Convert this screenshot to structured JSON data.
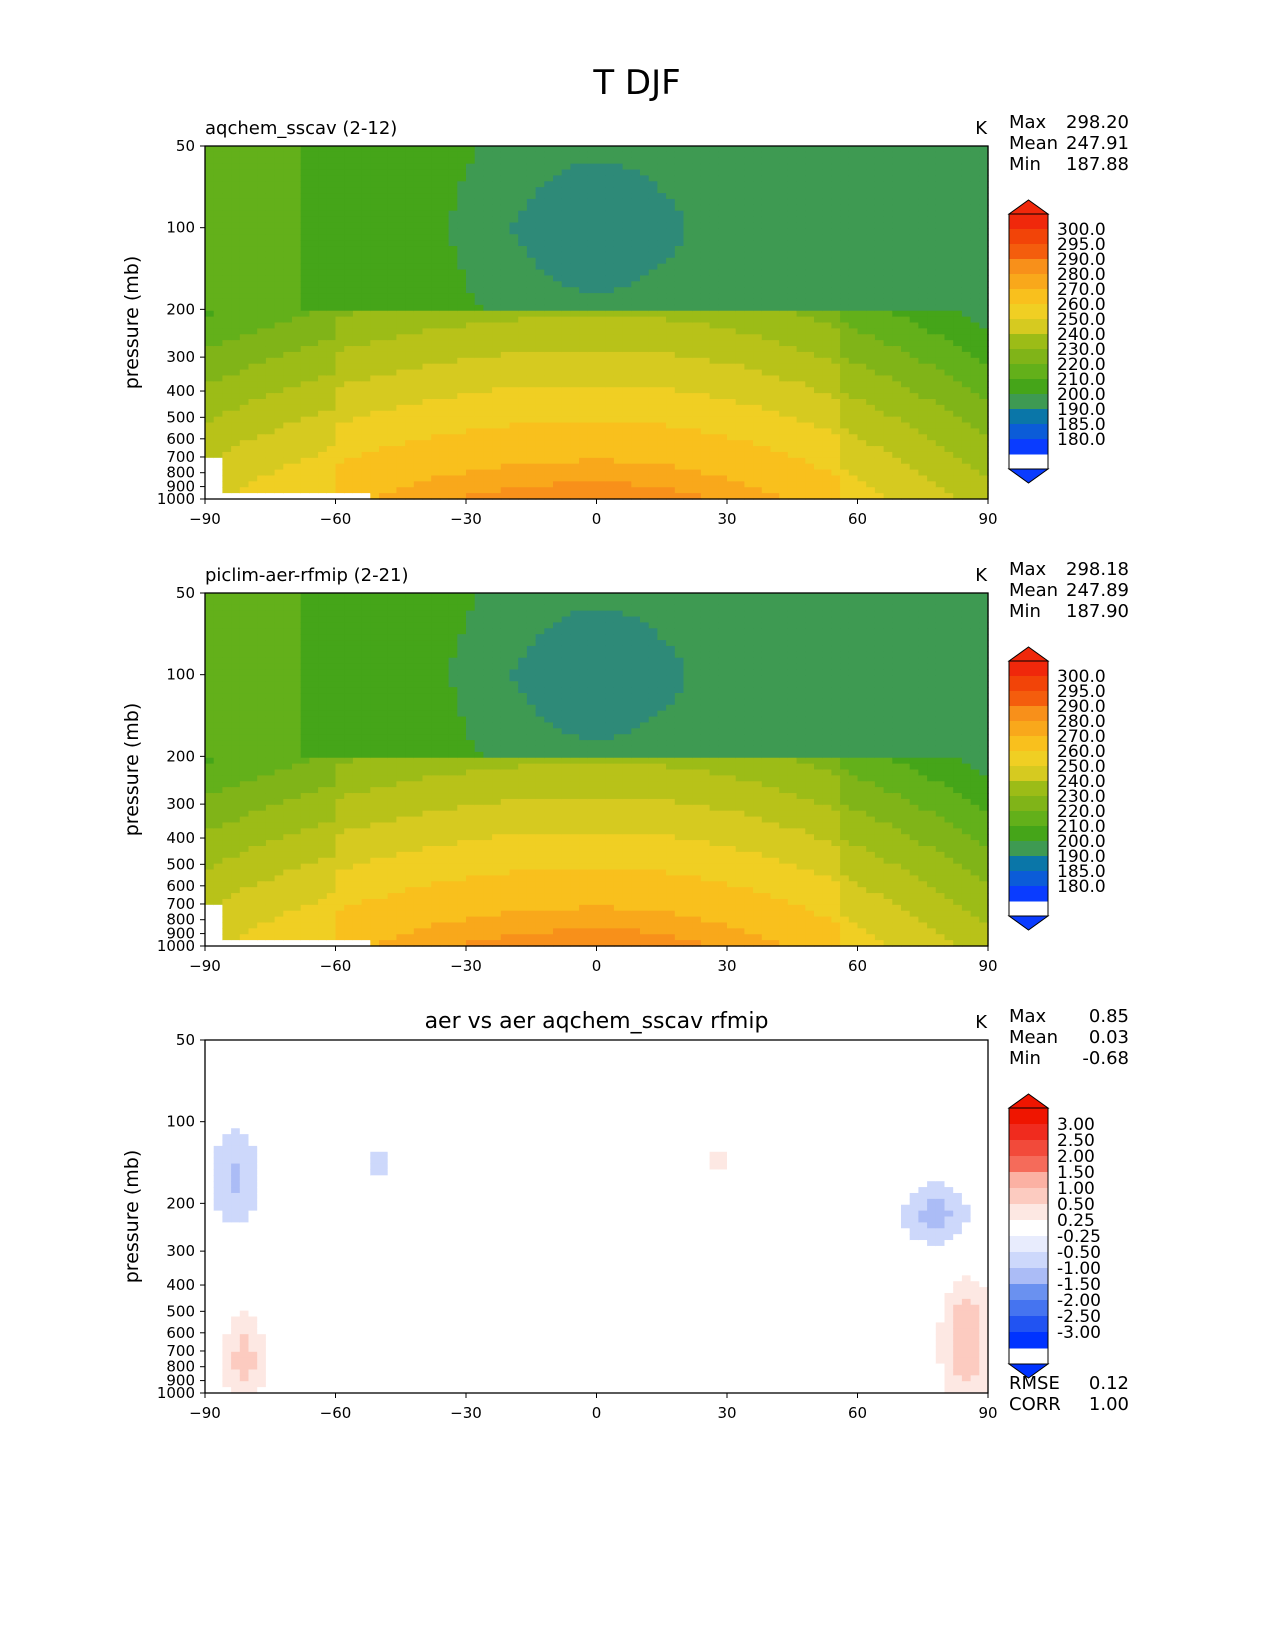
{
  "figure": {
    "title": "T DJF"
  },
  "colors": {
    "cmap_full": [
      "#0a3cff",
      "#0b5cd8",
      "#0a76a8",
      "#2e8a78",
      "#3e9a52",
      "#45a519",
      "#63b01a",
      "#80b418",
      "#9cbc17",
      "#b8c219",
      "#d6ca20",
      "#f0cf23",
      "#f9c01d",
      "#f9a81b",
      "#f8901a",
      "#f77612",
      "#f45d0d",
      "#f24408",
      "#f0280b"
    ],
    "cmap_diff": [
      "#0033ff",
      "#2153f2",
      "#4574f0",
      "#6a91f0",
      "#8aa6f3",
      "#abbcf6",
      "#cdd8fb",
      "#e8ecfd",
      "#ffffff",
      "#fde8e3",
      "#fccbc0",
      "#fbb1a3",
      "#f98f7c",
      "#f56b5a",
      "#f24a3a",
      "#f02b1e",
      "#ef1500"
    ],
    "missing": "#ffffff"
  },
  "panels": [
    {
      "title": "aqchem_sscav (2-12)",
      "units": "K",
      "ylabel": "pressure (mb)",
      "stats": {
        "max_label": "Max",
        "max": "298.20",
        "mean_label": "Mean",
        "mean": "247.91",
        "min_label": "Min",
        "min": "187.88"
      },
      "colorbar": [
        "300.0",
        "295.0",
        "290.0",
        "280.0",
        "270.0",
        "260.0",
        "250.0",
        "240.0",
        "230.0",
        "220.0",
        "210.0",
        "200.0",
        "190.0",
        "185.0",
        "180.0"
      ],
      "field": "full",
      "variant": 1
    },
    {
      "title": "piclim-aer-rfmip (2-21)",
      "units": "K",
      "ylabel": "pressure (mb)",
      "stats": {
        "max_label": "Max",
        "max": "298.18",
        "mean_label": "Mean",
        "mean": "247.89",
        "min_label": "Min",
        "min": "187.90"
      },
      "colorbar": [
        "300.0",
        "295.0",
        "290.0",
        "280.0",
        "270.0",
        "260.0",
        "250.0",
        "240.0",
        "230.0",
        "220.0",
        "210.0",
        "200.0",
        "190.0",
        "185.0",
        "180.0"
      ],
      "field": "full",
      "variant": 2
    },
    {
      "title": "aer vs aer aqchem_sscav rfmip",
      "units": "K",
      "ylabel": "pressure (mb)",
      "stats": {
        "max_label": "Max",
        "max": "0.85",
        "mean_label": "Mean",
        "mean": "0.03",
        "min_label": "Min",
        "min": "-0.68"
      },
      "colorbar": [
        "3.00",
        "2.50",
        "2.00",
        "1.50",
        "1.00",
        "0.50",
        "0.25",
        "-0.25",
        "-0.50",
        "-1.00",
        "-1.50",
        "-2.00",
        "-2.50",
        "-3.00"
      ],
      "field": "diff",
      "extra": [
        {
          "label": "RMSE",
          "value": "0.12"
        },
        {
          "label": "CORR",
          "value": "1.00"
        }
      ]
    }
  ],
  "chart_data": [
    {
      "type": "heatmap",
      "title": "aqchem_sscav (2-12)",
      "xlabel": "",
      "ylabel": "pressure (mb)",
      "x_ticks": [
        "−90",
        "−60",
        "−30",
        "0",
        "30",
        "60",
        "90"
      ],
      "y_ticks": [
        "50",
        "100",
        "200",
        "300",
        "400",
        "500",
        "600",
        "700",
        "800",
        "900",
        "1000"
      ],
      "xlim": [
        -90,
        90
      ],
      "ylim": [
        1000,
        50
      ],
      "levels": [
        180,
        185,
        190,
        200,
        210,
        220,
        230,
        240,
        250,
        260,
        270,
        280,
        290,
        295,
        300
      ],
      "units": "K",
      "max": 298.2,
      "mean": 247.91,
      "min": 187.88
    },
    {
      "type": "heatmap",
      "title": "piclim-aer-rfmip (2-21)",
      "xlabel": "",
      "ylabel": "pressure (mb)",
      "x_ticks": [
        "−90",
        "−60",
        "−30",
        "0",
        "30",
        "60",
        "90"
      ],
      "y_ticks": [
        "50",
        "100",
        "200",
        "300",
        "400",
        "500",
        "600",
        "700",
        "800",
        "900",
        "1000"
      ],
      "xlim": [
        -90,
        90
      ],
      "ylim": [
        1000,
        50
      ],
      "levels": [
        180,
        185,
        190,
        200,
        210,
        220,
        230,
        240,
        250,
        260,
        270,
        280,
        290,
        295,
        300
      ],
      "units": "K",
      "max": 298.18,
      "mean": 247.89,
      "min": 187.9
    },
    {
      "type": "heatmap",
      "title": "aer vs aer aqchem_sscav rfmip",
      "xlabel": "",
      "ylabel": "pressure (mb)",
      "x_ticks": [
        "−90",
        "−60",
        "−30",
        "0",
        "30",
        "60",
        "90"
      ],
      "y_ticks": [
        "50",
        "100",
        "200",
        "300",
        "400",
        "500",
        "600",
        "700",
        "800",
        "900",
        "1000"
      ],
      "xlim": [
        -90,
        90
      ],
      "ylim": [
        1000,
        50
      ],
      "levels": [
        -3.0,
        -2.5,
        -2.0,
        -1.5,
        -1.0,
        -0.5,
        -0.25,
        0.25,
        0.5,
        1.0,
        1.5,
        2.0,
        2.5,
        3.0
      ],
      "units": "K",
      "max": 0.85,
      "mean": 0.03,
      "min": -0.68,
      "rmse": 0.12,
      "corr": 1.0
    }
  ]
}
